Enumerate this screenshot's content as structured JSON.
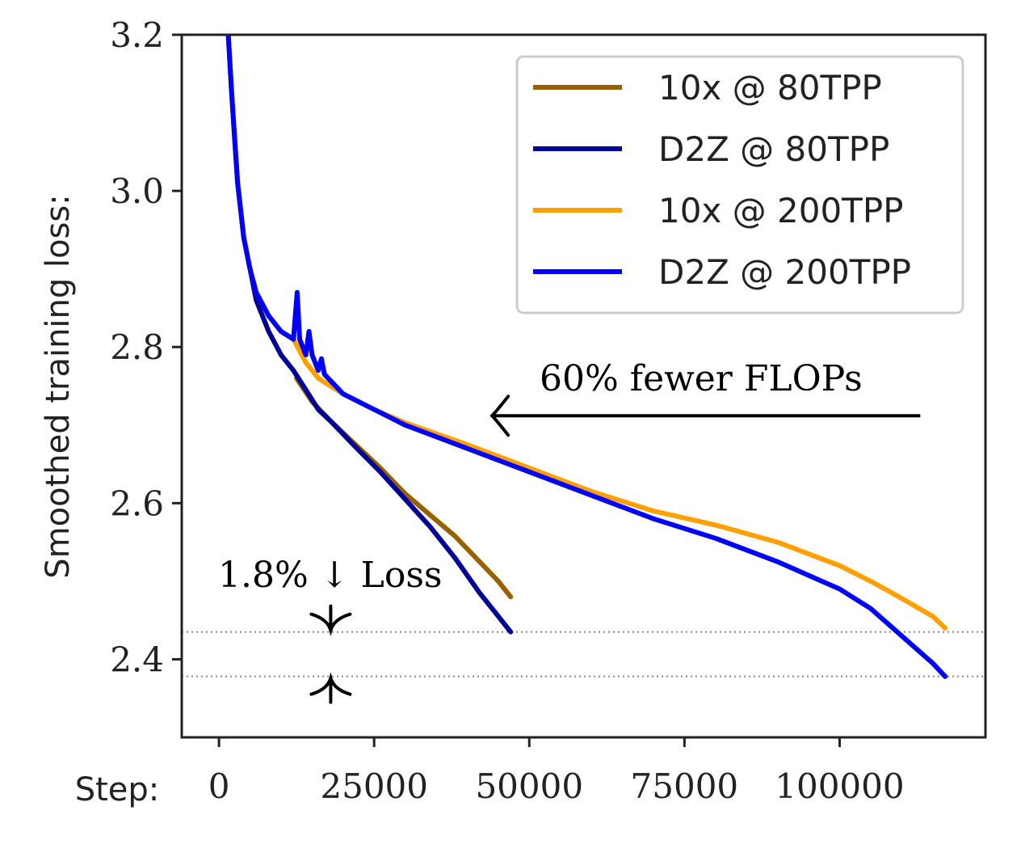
{
  "chart_data": {
    "type": "line",
    "title": "",
    "xlabel": "Step:",
    "ylabel": "Smoothed training loss:",
    "xlim": [
      -6000,
      123500
    ],
    "ylim": [
      2.3,
      3.2
    ],
    "xticks": [
      0,
      25000,
      50000,
      75000,
      100000
    ],
    "xtick_labels": [
      "0",
      "25000",
      "50000",
      "75000",
      "100000"
    ],
    "yticks": [
      2.4,
      2.6,
      2.8,
      3.0,
      3.2
    ],
    "ytick_labels": [
      "2.4",
      "2.6",
      "2.8",
      "3.0",
      "3.2"
    ],
    "grid": false,
    "legend_position": "top-right",
    "series": [
      {
        "name": "10x @ 80TPP",
        "color": "#996000",
        "x": [
          12500,
          15000,
          18000,
          22000,
          26000,
          30000,
          34000,
          38000,
          42000,
          45000,
          47000
        ],
        "y": [
          2.76,
          2.73,
          2.705,
          2.675,
          2.645,
          2.612,
          2.585,
          2.558,
          2.525,
          2.5,
          2.48
        ]
      },
      {
        "name": "D2Z @ 80TPP",
        "color": "#000099",
        "x": [
          1500,
          2000,
          2500,
          3000,
          4000,
          5000,
          6000,
          7000,
          8000,
          10000,
          12000,
          14000,
          16000,
          18000,
          22000,
          26000,
          30000,
          34000,
          38000,
          42000,
          45000,
          47000
        ],
        "y": [
          3.2,
          3.13,
          3.07,
          3.01,
          2.94,
          2.9,
          2.86,
          2.84,
          2.82,
          2.79,
          2.77,
          2.745,
          2.72,
          2.705,
          2.672,
          2.64,
          2.605,
          2.57,
          2.53,
          2.485,
          2.455,
          2.435
        ]
      },
      {
        "name": "10x @ 200TPP",
        "color": "#ffa000",
        "x": [
          1500,
          2000,
          2500,
          3000,
          4000,
          5000,
          6000,
          7000,
          8000,
          10000,
          12000,
          14000,
          16000,
          20000,
          25000,
          30000,
          40000,
          50000,
          60000,
          70000,
          80000,
          90000,
          100000,
          105000,
          110000,
          115000,
          117000
        ],
        "y": [
          3.2,
          3.13,
          3.07,
          3.01,
          2.94,
          2.9,
          2.87,
          2.855,
          2.84,
          2.82,
          2.81,
          2.78,
          2.76,
          2.74,
          2.72,
          2.703,
          2.675,
          2.645,
          2.615,
          2.59,
          2.572,
          2.55,
          2.52,
          2.5,
          2.478,
          2.455,
          2.44
        ]
      },
      {
        "name": "D2Z @ 200TPP",
        "color": "#0000ff",
        "x": [
          1500,
          2000,
          2500,
          3000,
          4000,
          5000,
          6000,
          7000,
          8000,
          10000,
          12000,
          12600,
          13000,
          13500,
          14000,
          14500,
          15000,
          16000,
          16500,
          17000,
          20000,
          25000,
          30000,
          40000,
          50000,
          60000,
          70000,
          80000,
          90000,
          100000,
          105000,
          110000,
          115000,
          117000
        ],
        "y": [
          3.2,
          3.13,
          3.07,
          3.01,
          2.94,
          2.9,
          2.87,
          2.855,
          2.84,
          2.82,
          2.81,
          2.87,
          2.81,
          2.8,
          2.79,
          2.82,
          2.79,
          2.77,
          2.785,
          2.765,
          2.74,
          2.72,
          2.7,
          2.67,
          2.64,
          2.61,
          2.58,
          2.555,
          2.525,
          2.49,
          2.465,
          2.43,
          2.395,
          2.378
        ]
      }
    ],
    "reference_lines": [
      2.435,
      2.378
    ],
    "annotations": {
      "flops_text": "60% fewer FLOPs",
      "loss_text": "1.8% ↓ Loss",
      "flops_arrow_from": [
        113000,
        2.712
      ],
      "flops_arrow_to": [
        44000,
        2.712
      ],
      "loss_marker_x": 18000
    }
  }
}
